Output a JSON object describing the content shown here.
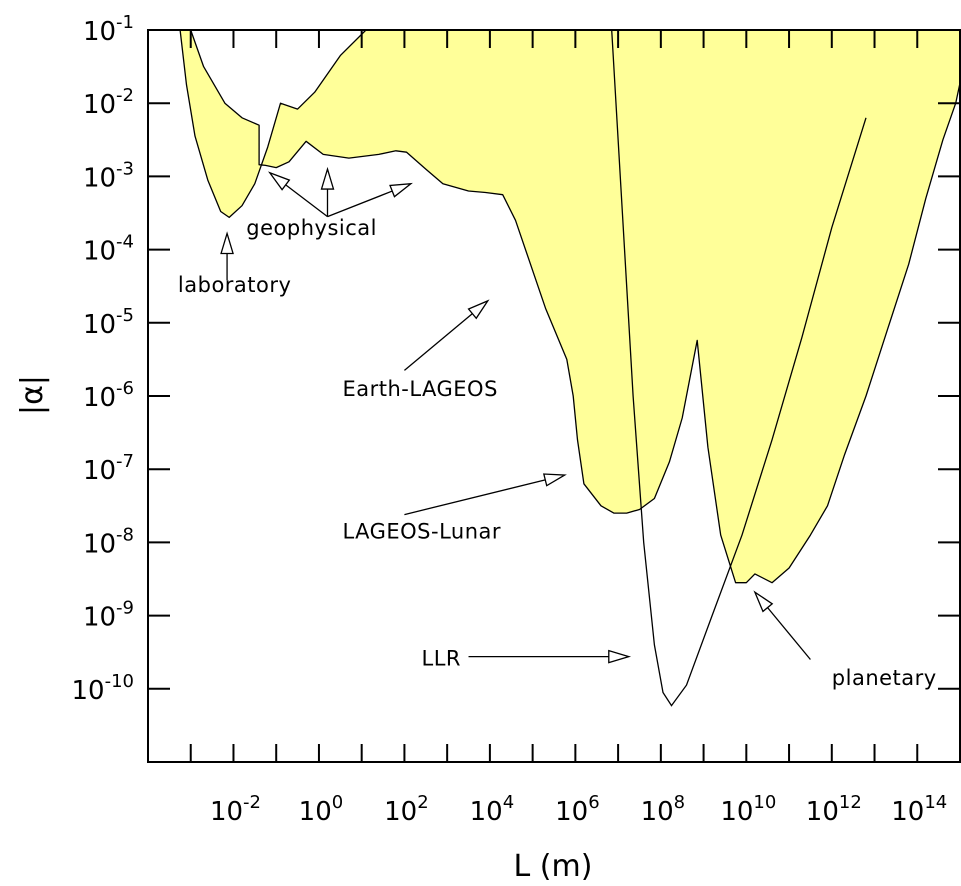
{
  "chart_data": {
    "type": "area",
    "xlabel": "L (m)",
    "ylabel": "|α|",
    "x_scale": "log",
    "y_scale": "log",
    "xlim": [
      0.0001,
      1000000000000000
    ],
    "ylim": [
      1e-11,
      0.1
    ],
    "fill_color": "#ffff99",
    "line_color": "#000000",
    "x_ticks": [
      {
        "exp": -2,
        "base": "10",
        "sup": "-2"
      },
      {
        "exp": 0,
        "base": "10",
        "sup": "0"
      },
      {
        "exp": 2,
        "base": "10",
        "sup": "2"
      },
      {
        "exp": 4,
        "base": "10",
        "sup": "4"
      },
      {
        "exp": 6,
        "base": "10",
        "sup": "6"
      },
      {
        "exp": 8,
        "base": "10",
        "sup": "8"
      },
      {
        "exp": 10,
        "base": "10",
        "sup": "10"
      },
      {
        "exp": 12,
        "base": "10",
        "sup": "12"
      },
      {
        "exp": 14,
        "base": "10",
        "sup": "14"
      }
    ],
    "y_ticks": [
      {
        "exp": -1,
        "base": "10",
        "sup": "-1"
      },
      {
        "exp": -2,
        "base": "10",
        "sup": "-2"
      },
      {
        "exp": -3,
        "base": "10",
        "sup": "-3"
      },
      {
        "exp": -4,
        "base": "10",
        "sup": "-4"
      },
      {
        "exp": -5,
        "base": "10",
        "sup": "-5"
      },
      {
        "exp": -6,
        "base": "10",
        "sup": "-6"
      },
      {
        "exp": -7,
        "base": "10",
        "sup": "-7"
      },
      {
        "exp": -8,
        "base": "10",
        "sup": "-8"
      },
      {
        "exp": -9,
        "base": "10",
        "sup": "-9"
      },
      {
        "exp": -10,
        "base": "10",
        "sup": "-10"
      }
    ],
    "boundary": [
      [
        -3.25,
        -1
      ],
      [
        -3.1,
        -1.75
      ],
      [
        -2.9,
        -2.45
      ],
      [
        -2.6,
        -3.05
      ],
      [
        -2.3,
        -3.48
      ],
      [
        -2.1,
        -3.56
      ],
      [
        -1.8,
        -3.4
      ],
      [
        -1.5,
        -3.1
      ],
      [
        -1.2,
        -2.6
      ],
      [
        -0.9,
        -2.0
      ],
      [
        -0.5,
        -2.08
      ],
      [
        -0.1,
        -1.85
      ],
      [
        0.5,
        -1.35
      ],
      [
        1.1,
        -1.0
      ],
      [
        2.3,
        -1.0
      ],
      [
        4.0,
        -1.0
      ],
      [
        6.9,
        -1.0
      ],
      [
        11.0,
        -1.0
      ],
      [
        15.1,
        -1.0
      ],
      [
        15.1,
        -1.45
      ],
      [
        14.9,
        -2.0
      ],
      [
        14.6,
        -2.5
      ],
      [
        14.2,
        -3.3
      ],
      [
        13.8,
        -4.2
      ],
      [
        13.3,
        -5.1
      ],
      [
        12.8,
        -6.0
      ],
      [
        12.3,
        -6.8
      ],
      [
        11.9,
        -7.5
      ],
      [
        11.5,
        -7.9
      ],
      [
        11.0,
        -8.35
      ],
      [
        10.6,
        -8.55
      ],
      [
        10.2,
        -8.43
      ],
      [
        10.0,
        -8.55
      ],
      [
        9.75,
        -8.55
      ],
      [
        9.4,
        -7.9
      ],
      [
        9.1,
        -6.7
      ],
      [
        8.85,
        -5.24
      ],
      [
        8.5,
        -6.3
      ],
      [
        8.2,
        -6.9
      ],
      [
        7.85,
        -7.4
      ],
      [
        7.5,
        -7.55
      ],
      [
        7.2,
        -7.6
      ],
      [
        6.9,
        -7.6
      ],
      [
        6.6,
        -7.5
      ],
      [
        6.2,
        -7.2
      ],
      [
        6.05,
        -6.6
      ],
      [
        5.95,
        -6.0
      ],
      [
        5.8,
        -5.5
      ],
      [
        5.3,
        -4.8
      ],
      [
        4.6,
        -3.6
      ],
      [
        4.3,
        -3.25
      ],
      [
        3.9,
        -3.22
      ],
      [
        3.5,
        -3.2
      ],
      [
        2.9,
        -3.1
      ],
      [
        2.5,
        -2.9
      ],
      [
        2.05,
        -2.67
      ],
      [
        1.8,
        -2.65
      ],
      [
        1.4,
        -2.7
      ],
      [
        0.7,
        -2.75
      ],
      [
        0.1,
        -2.7
      ],
      [
        -0.3,
        -2.52
      ],
      [
        -0.7,
        -2.8
      ],
      [
        -1.0,
        -2.88
      ],
      [
        -1.25,
        -2.85
      ],
      [
        -1.4,
        -2.84
      ],
      [
        -1.4,
        -2.3
      ],
      [
        -1.8,
        -2.2
      ],
      [
        -2.2,
        -2.0
      ],
      [
        -2.7,
        -1.5
      ],
      [
        -3.0,
        -1.0
      ]
    ],
    "llr_curve": [
      [
        6.85,
        -1.0
      ],
      [
        7.1,
        -3.5
      ],
      [
        7.35,
        -6.0
      ],
      [
        7.6,
        -8.0
      ],
      [
        7.85,
        -9.4
      ],
      [
        8.05,
        -10.05
      ],
      [
        8.25,
        -10.23
      ],
      [
        8.6,
        -9.95
      ],
      [
        9.2,
        -9.0
      ],
      [
        9.9,
        -7.9
      ],
      [
        10.6,
        -6.6
      ],
      [
        11.3,
        -5.2
      ],
      [
        12.0,
        -3.7
      ],
      [
        12.8,
        -2.2
      ]
    ],
    "annotations": [
      {
        "text": "laboratory",
        "label_at": [
          -3.3,
          -4.58
        ],
        "tail": [
          -2.15,
          -4.42
        ],
        "head": [
          -2.15,
          -3.78
        ]
      },
      {
        "text": "geophysical",
        "label_at": [
          -1.7,
          -3.8
        ],
        "arrows": [
          {
            "tail": [
              0.2,
              -3.55
            ],
            "head": [
              -1.15,
              -2.95
            ]
          },
          {
            "tail": [
              0.2,
              -3.55
            ],
            "head": [
              0.2,
              -2.9
            ]
          },
          {
            "tail": [
              0.2,
              -3.55
            ],
            "head": [
              2.15,
              -3.1
            ]
          }
        ]
      },
      {
        "text": "Earth-LAGEOS",
        "label_at": [
          0.55,
          -6.0
        ],
        "tail": [
          2.0,
          -5.65
        ],
        "head": [
          3.95,
          -4.7
        ]
      },
      {
        "text": "LAGEOS-Lunar",
        "label_at": [
          0.55,
          -7.95
        ],
        "tail": [
          2.0,
          -7.62
        ],
        "head": [
          5.75,
          -7.08
        ]
      },
      {
        "text": "LLR",
        "label_at": [
          2.4,
          -9.68
        ],
        "tail": [
          3.5,
          -9.56
        ],
        "head": [
          7.25,
          -9.56
        ]
      },
      {
        "text": "planetary",
        "label_at": [
          12.0,
          -9.95
        ],
        "tail": [
          11.5,
          -9.6
        ],
        "head": [
          10.2,
          -8.68
        ]
      }
    ]
  }
}
